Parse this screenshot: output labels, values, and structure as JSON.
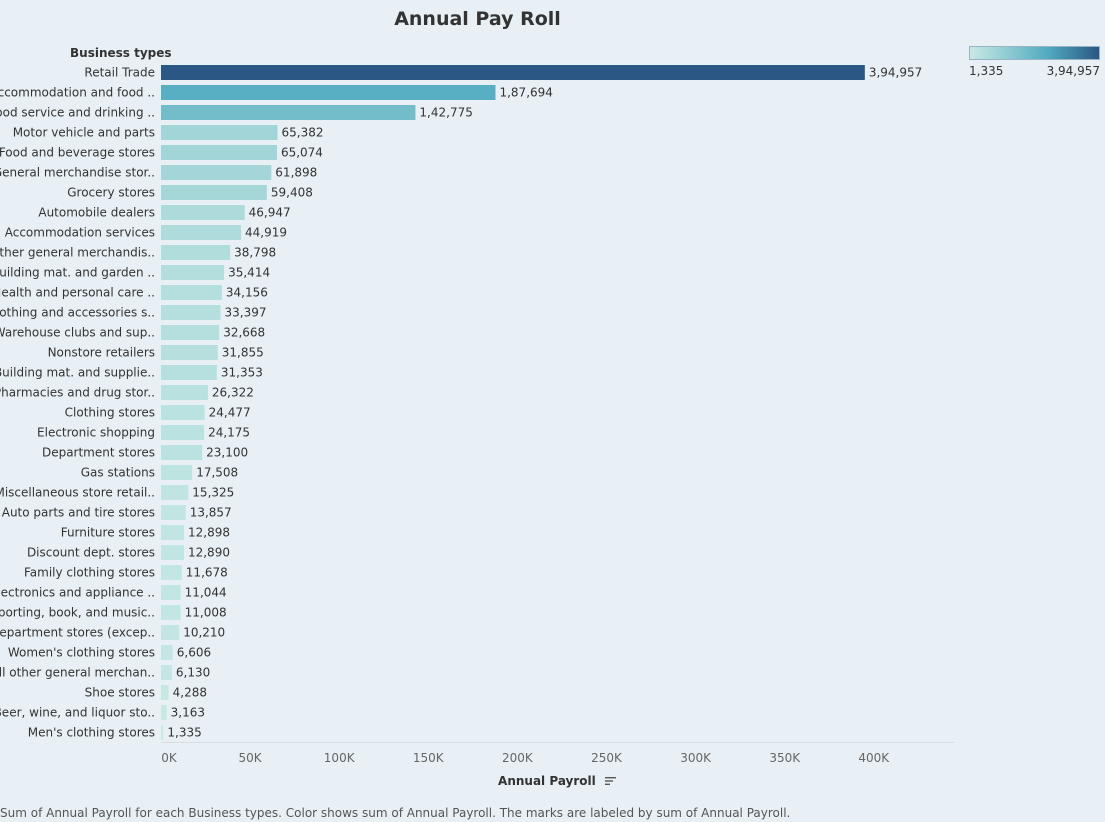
{
  "chart_data": {
    "type": "bar",
    "orientation": "horizontal",
    "title": "Annual Pay Roll",
    "row_header": "Business types",
    "xlabel": "Annual Payroll",
    "xlim": [
      0,
      445000
    ],
    "x_ticks": [
      {
        "value": 0,
        "label": "0K"
      },
      {
        "value": 50000,
        "label": "50K"
      },
      {
        "value": 100000,
        "label": "100K"
      },
      {
        "value": 150000,
        "label": "150K"
      },
      {
        "value": 200000,
        "label": "200K"
      },
      {
        "value": 250000,
        "label": "250K"
      },
      {
        "value": 300000,
        "label": "300K"
      },
      {
        "value": 350000,
        "label": "350K"
      },
      {
        "value": 400000,
        "label": "400K"
      }
    ],
    "categories": [
      "Retail Trade",
      "Accommodation and food ..",
      "Food service and drinking ..",
      "Motor vehicle and parts",
      "Food and beverage stores",
      "General merchandise stor..",
      "Grocery stores",
      "Automobile dealers",
      "Accommodation services",
      "Other general merchandis..",
      "Building mat. and garden ..",
      "Health and personal care ..",
      "Clothing and accessories s..",
      "Warehouse clubs and sup..",
      "Nonstore retailers",
      "Building mat. and supplie..",
      "Pharmacies and drug stor..",
      "Clothing stores",
      "Electronic shopping",
      "Department stores",
      "Gas stations",
      "Miscellaneous store retail..",
      "Auto parts and tire stores",
      "Furniture stores",
      "Discount dept. stores",
      "Family clothing stores",
      "Electronics and appliance ..",
      "Sporting, book, and music..",
      "Department stores (excep..",
      "Women's clothing stores",
      "All other general merchan..",
      "Shoe stores",
      "Beer, wine, and liquor sto..",
      "Men's clothing stores"
    ],
    "values": [
      394957,
      187694,
      142775,
      65382,
      65074,
      61898,
      59408,
      46947,
      44919,
      38798,
      35414,
      34156,
      33397,
      32668,
      31855,
      31353,
      26322,
      24477,
      24175,
      23100,
      17508,
      15325,
      13857,
      12898,
      12890,
      11678,
      11044,
      11008,
      10210,
      6606,
      6130,
      4288,
      3163,
      1335
    ],
    "value_labels": [
      "3,94,957",
      "1,87,694",
      "1,42,775",
      "65,382",
      "65,074",
      "61,898",
      "59,408",
      "46,947",
      "44,919",
      "38,798",
      "35,414",
      "34,156",
      "33,397",
      "32,668",
      "31,855",
      "31,353",
      "26,322",
      "24,477",
      "24,175",
      "23,100",
      "17,508",
      "15,325",
      "13,857",
      "12,898",
      "12,890",
      "11,678",
      "11,044",
      "11,008",
      "10,210",
      "6,606",
      "6,130",
      "4,288",
      "3,163",
      "1,335"
    ],
    "color_legend": {
      "min_label": "1,335",
      "max_label": "3,94,957",
      "min_value": 1335,
      "max_value": 394957,
      "min_color": "#c8e9e4",
      "mid_color": "#52abc0",
      "max_color": "#2a5783"
    },
    "grid": false
  },
  "footer_text": "Sum of Annual Payroll for each Business types.  Color shows sum of Annual Payroll.  The marks are labeled by sum of Annual Payroll."
}
